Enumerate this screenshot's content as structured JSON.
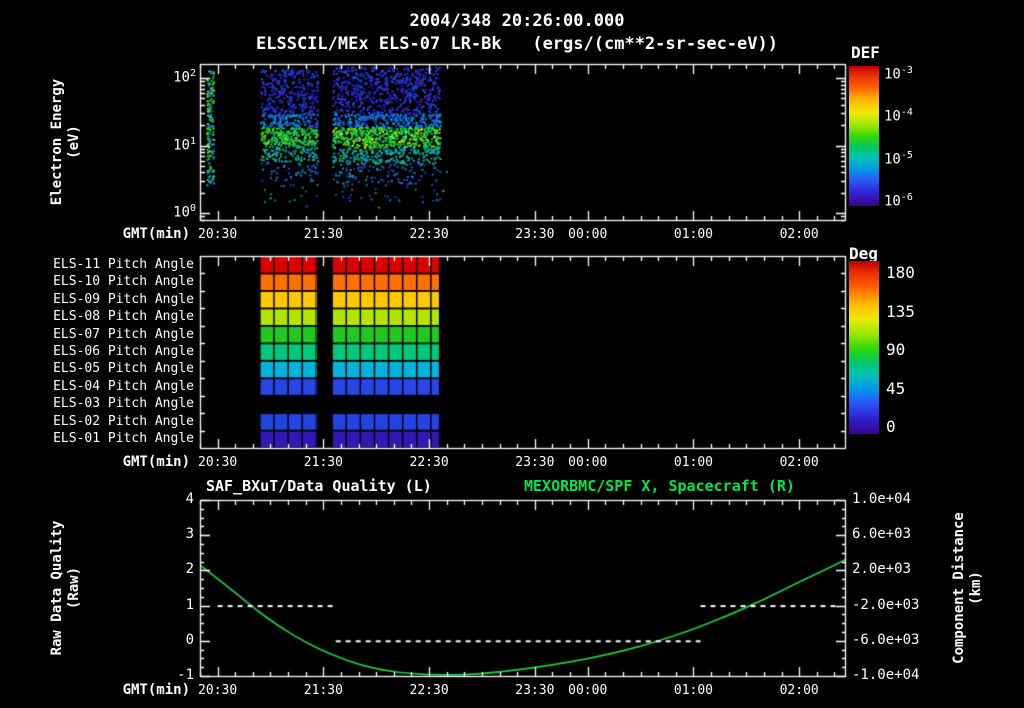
{
  "header": {
    "title_line1": "2004/348 20:26:00.000",
    "title_line2": "ELSSCIL/MEx ELS-07 LR-Bk   (ergs/(cm**2-sr-sec-eV))"
  },
  "colors": {
    "background": "#000000",
    "foreground": "#ffffff",
    "accent_green": "#00e64d",
    "curve_green": "#22cc44"
  },
  "time_axis": {
    "label": "GMT(min)",
    "total_minutes": 366,
    "minor_tick_minutes": 10,
    "ticks": [
      {
        "label": "20:30",
        "t": 10
      },
      {
        "label": "21:30",
        "t": 70
      },
      {
        "label": "22:30",
        "t": 130
      },
      {
        "label": "23:30",
        "t": 190
      },
      {
        "label": "00:00",
        "t": 220
      },
      {
        "label": "01:00",
        "t": 280
      },
      {
        "label": "02:00",
        "t": 340
      }
    ]
  },
  "chart_data": [
    {
      "type": "heatmap",
      "name": "electron-energy-spectrogram",
      "ylabel": [
        "Electron Energy",
        "(eV)"
      ],
      "yscale": "log",
      "ylim": [
        0.79,
        162
      ],
      "ytick_exponents": [
        2,
        1,
        0
      ],
      "colorbar": {
        "title": "DEF",
        "units": "ergs/(cm**2-sr-sec-eV)",
        "tick_exponents": [
          -3,
          -4,
          -5,
          -6
        ]
      },
      "segments": [
        {
          "t0": 3.5,
          "t1": 7.5,
          "bands": [
            {
              "e0": 2.5,
              "e1": 130,
              "density": 0.8,
              "colors": [
                "#28c828",
                "#00b0e0",
                "#88d800",
                "#2848e0",
                "#00c878"
              ]
            }
          ]
        },
        {
          "t0": 34,
          "t1": 66.5,
          "bands": [
            {
              "e0": 30,
              "e1": 140,
              "density": 0.48,
              "colors": [
                "#2a20cc",
                "#3830dc",
                "#2040ec",
                "#4828c4",
                "#101080",
                "#0858e8"
              ]
            },
            {
              "e0": 19,
              "e1": 30,
              "density": 0.72,
              "colors": [
                "#1858f0",
                "#0088e8",
                "#00a8d8",
                "#3040d8"
              ]
            },
            {
              "e0": 10.5,
              "e1": 19,
              "density": 0.92,
              "colors": [
                "#00c83c",
                "#38d800",
                "#00bc64",
                "#88dc00",
                "#00d498"
              ]
            },
            {
              "e0": 6,
              "e1": 10.5,
              "density": 0.5,
              "colors": [
                "#00ac88",
                "#10a8c8",
                "#28c048",
                "#0888d8"
              ]
            },
            {
              "e0": 3,
              "e1": 6,
              "density": 0.18,
              "colors": [
                "#2458d0",
                "#0894a4",
                "#2838c8"
              ]
            },
            {
              "e0": 1.5,
              "e1": 3,
              "density": 0.06,
              "colors": [
                "#2838b8",
                "#00886c"
              ]
            }
          ]
        },
        {
          "t0": 75,
          "t1": 136,
          "bands": [
            {
              "e0": 30,
              "e1": 150,
              "density": 0.5,
              "colors": [
                "#2a20cc",
                "#3830dc",
                "#2040ec",
                "#4828c4",
                "#101080",
                "#0858e8"
              ]
            },
            {
              "e0": 19,
              "e1": 30,
              "density": 0.75,
              "colors": [
                "#1858f0",
                "#0088e8",
                "#00a8d8",
                "#3040d8"
              ]
            },
            {
              "e0": 9.5,
              "e1": 19,
              "density": 0.95,
              "colors": [
                "#00c83c",
                "#38d800",
                "#00bc64",
                "#88dc00",
                "#d0e800",
                "#00d498"
              ]
            },
            {
              "e0": 5.5,
              "e1": 9.5,
              "density": 0.55,
              "colors": [
                "#00ac88",
                "#10a8c8",
                "#28c048",
                "#0888d8"
              ]
            },
            {
              "e0": 2.8,
              "e1": 5.5,
              "density": 0.2,
              "colors": [
                "#2458d0",
                "#0894a4",
                "#2838c8"
              ]
            },
            {
              "e0": 1.5,
              "e1": 2.8,
              "density": 0.07,
              "colors": [
                "#2838b8",
                "#00886c"
              ]
            }
          ]
        }
      ],
      "noise_dots": [
        {
          "t": 137.5,
          "e": 2.2,
          "color": "#20c840"
        },
        {
          "t": 139.5,
          "e": 4.2,
          "color": "#0888d8"
        },
        {
          "t": 60,
          "e": 1.3,
          "color": "#2848e0"
        },
        {
          "t": 101,
          "e": 1.25,
          "color": "#00b064"
        },
        {
          "t": 126,
          "e": 1.5,
          "color": "#2458d0"
        }
      ]
    },
    {
      "type": "heatmap",
      "name": "pitch-angle-stack",
      "rows": [
        {
          "label": "ELS-11 Pitch Angle",
          "color": "#dc0000"
        },
        {
          "label": "ELS-10 Pitch Angle",
          "color": "#ff7000"
        },
        {
          "label": "ELS-09 Pitch Angle",
          "color": "#ffc800"
        },
        {
          "label": "ELS-08 Pitch Angle",
          "color": "#b4e400"
        },
        {
          "label": "ELS-07 Pitch Angle",
          "color": "#20c820"
        },
        {
          "label": "ELS-06 Pitch Angle",
          "color": "#00c87c"
        },
        {
          "label": "ELS-05 Pitch Angle",
          "color": "#00b4dc"
        },
        {
          "label": "ELS-04 Pitch Angle",
          "color": "#2846e8"
        },
        {
          "label": "ELS-03 Pitch Angle",
          "color": null
        },
        {
          "label": "ELS-02 Pitch Angle",
          "color": "#2444e0"
        },
        {
          "label": "ELS-01 Pitch Angle",
          "color": "#3418b4"
        }
      ],
      "segments": [
        {
          "t0": 34,
          "t1": 66.5
        },
        {
          "t0": 75,
          "t1": 136
        }
      ],
      "cell_minutes": 8,
      "colorbar": {
        "title": "Deg",
        "ticks": [
          "180",
          "135",
          "90",
          "45",
          "0"
        ],
        "range": [
          0,
          180
        ]
      }
    },
    {
      "type": "line",
      "name": "quality-and-distance",
      "title_left": "SAF_BXuT/Data Quality (L)",
      "title_right": "MEXORBMC/SPF X, Spacecraft (R)",
      "ylabel_left": [
        "Raw Data Quality",
        "(Raw)"
      ],
      "ylabel_right": [
        "Component Distance",
        "(km)"
      ],
      "yticks_left": [
        "4",
        "3",
        "2",
        "1",
        "0",
        "-1"
      ],
      "ylim_left": [
        -1,
        4
      ],
      "yticks_right": [
        "1.0e+04",
        "6.0e+03",
        "2.0e+03",
        "-2.0e+03",
        "-6.0e+03",
        "-1.0e+04"
      ],
      "ylim_right": [
        -10000,
        10000
      ],
      "distance_series": {
        "name": "MEXORBMC/SPF X Spacecraft",
        "color": "#22cc44",
        "axis": "right",
        "points": [
          [
            0,
            2600
          ],
          [
            15,
            300
          ],
          [
            30,
            -2200
          ],
          [
            45,
            -4400
          ],
          [
            60,
            -6200
          ],
          [
            75,
            -7600
          ],
          [
            90,
            -8700
          ],
          [
            105,
            -9400
          ],
          [
            120,
            -9750
          ],
          [
            135,
            -9900
          ],
          [
            150,
            -9850
          ],
          [
            165,
            -9650
          ],
          [
            180,
            -9300
          ],
          [
            200,
            -8750
          ],
          [
            220,
            -8050
          ],
          [
            240,
            -7150
          ],
          [
            260,
            -6050
          ],
          [
            280,
            -4700
          ],
          [
            300,
            -3100
          ],
          [
            320,
            -1300
          ],
          [
            340,
            700
          ],
          [
            355,
            2100
          ],
          [
            366,
            3200
          ]
        ]
      },
      "quality_series": {
        "name": "SAF_BXuT Data Quality",
        "color": "#ffffff",
        "style": "dashed",
        "axis": "left",
        "segments": [
          {
            "t0": 10,
            "t1": 77,
            "value": 1
          },
          {
            "t0": 77,
            "t1": 284,
            "value": 0
          },
          {
            "t0": 284,
            "t1": 362,
            "value": 1
          }
        ]
      }
    }
  ]
}
